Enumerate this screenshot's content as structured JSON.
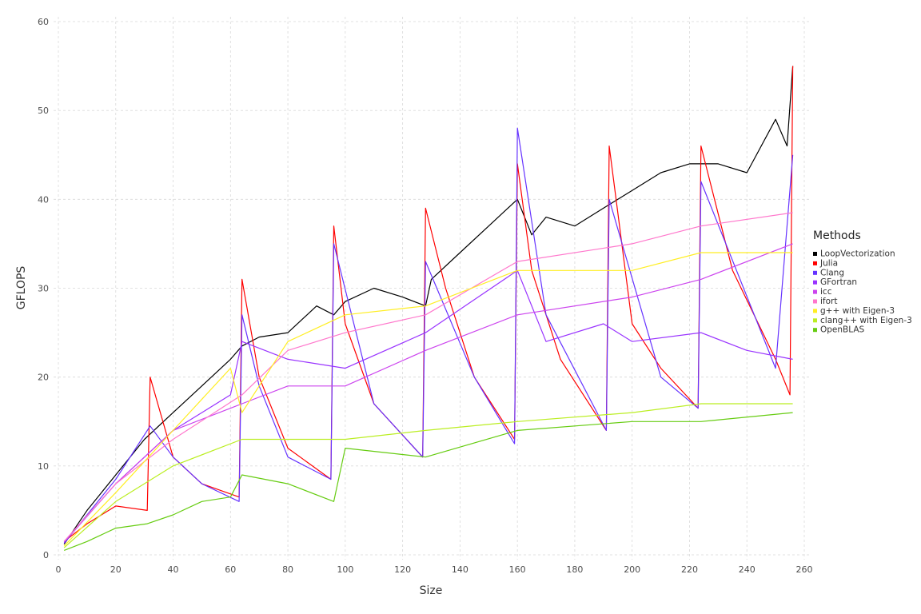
{
  "chart_data": {
    "type": "line",
    "xlabel": "Size",
    "ylabel": "GFLOPS",
    "xlim": [
      0,
      260
    ],
    "ylim": [
      0,
      60
    ],
    "x_ticks": [
      0,
      20,
      40,
      60,
      80,
      100,
      120,
      140,
      160,
      180,
      200,
      220,
      240,
      260
    ],
    "y_ticks": [
      0,
      10,
      20,
      30,
      40,
      50,
      60
    ],
    "grid": true,
    "legend": {
      "title": "Methods",
      "position": "right"
    },
    "series": [
      {
        "name": "LoopVectorization",
        "color": "#000000",
        "x": [
          2,
          10,
          20,
          30,
          40,
          50,
          60,
          64,
          70,
          80,
          90,
          96,
          100,
          110,
          120,
          128,
          130,
          140,
          150,
          160,
          165,
          170,
          180,
          190,
          200,
          210,
          220,
          230,
          240,
          250,
          254,
          256
        ],
        "y": [
          1.2,
          5.0,
          9.0,
          13.0,
          16.0,
          19.0,
          22.0,
          23.5,
          24.5,
          25.0,
          28.0,
          27.0,
          28.5,
          30.0,
          29.0,
          28.0,
          31.0,
          34.0,
          37.0,
          40.0,
          36.0,
          38.0,
          37.0,
          39.0,
          41.0,
          43.0,
          44.0,
          44.0,
          43.0,
          49.0,
          46.0,
          55.0
        ]
      },
      {
        "name": "Julia",
        "color": "#ff0000",
        "x": [
          2,
          10,
          20,
          31,
          32,
          40,
          50,
          63,
          64,
          70,
          80,
          95,
          96,
          100,
          110,
          127,
          128,
          135,
          145,
          159,
          160,
          165,
          175,
          191,
          192,
          200,
          210,
          223,
          224,
          235,
          250,
          255,
          256
        ],
        "y": [
          1.5,
          3.5,
          5.5,
          5.0,
          20.0,
          11.0,
          8.0,
          6.5,
          31.0,
          20.0,
          12.0,
          8.5,
          37.0,
          26.0,
          17.0,
          11.0,
          39.0,
          30.0,
          20.0,
          13.0,
          44.0,
          32.0,
          22.0,
          14.0,
          46.0,
          26.0,
          21.0,
          16.5,
          46.0,
          32.0,
          22.0,
          18.0,
          55.0
        ]
      },
      {
        "name": "Clang",
        "color": "#6633ff",
        "x": [
          2,
          10,
          20,
          31,
          32,
          40,
          50,
          63,
          64,
          70,
          80,
          95,
          96,
          110,
          127,
          128,
          145,
          159,
          160,
          170,
          191,
          192,
          210,
          223,
          224,
          250,
          256
        ],
        "y": [
          1.3,
          4.5,
          8.5,
          14.0,
          14.5,
          11.0,
          8.0,
          6.0,
          27.0,
          19.0,
          11.0,
          8.5,
          35.0,
          17.0,
          11.0,
          33.0,
          20.0,
          12.5,
          48.0,
          27.0,
          14.0,
          40.0,
          20.0,
          16.5,
          42.0,
          21.0,
          45.0
        ]
      },
      {
        "name": "GFortran",
        "color": "#9933ff",
        "x": [
          2,
          20,
          40,
          60,
          64,
          80,
          100,
          128,
          160,
          170,
          190,
          200,
          224,
          240,
          256
        ],
        "y": [
          1.4,
          8.0,
          14.0,
          18.0,
          24.0,
          22.0,
          21.0,
          25.0,
          32.0,
          24.0,
          26.0,
          24.0,
          25.0,
          23.0,
          22.0
        ]
      },
      {
        "name": "icc",
        "color": "#cc44ee",
        "x": [
          2,
          20,
          40,
          64,
          80,
          100,
          128,
          160,
          200,
          224,
          256
        ],
        "y": [
          1.5,
          8.0,
          14.0,
          17.0,
          19.0,
          19.0,
          23.0,
          27.0,
          29.0,
          31.0,
          35.0
        ]
      },
      {
        "name": "ifort",
        "color": "#ff77cc",
        "x": [
          2,
          20,
          40,
          64,
          80,
          100,
          128,
          160,
          200,
          224,
          256
        ],
        "y": [
          1.5,
          8.0,
          13.0,
          18.0,
          23.0,
          25.0,
          27.0,
          33.0,
          35.0,
          37.0,
          38.5
        ]
      },
      {
        "name": "g++ with Eigen-3",
        "color": "#ffee22",
        "x": [
          2,
          20,
          40,
          60,
          64,
          80,
          100,
          128,
          160,
          200,
          224,
          256
        ],
        "y": [
          1.0,
          7.0,
          14.0,
          21.0,
          16.0,
          24.0,
          27.0,
          28.0,
          32.0,
          32.0,
          34.0,
          34.0
        ]
      },
      {
        "name": "clang++ with Eigen-3",
        "color": "#bbee22",
        "x": [
          2,
          20,
          40,
          64,
          100,
          128,
          160,
          200,
          224,
          256
        ],
        "y": [
          0.8,
          6.0,
          10.0,
          13.0,
          13.0,
          14.0,
          15.0,
          16.0,
          17.0,
          17.0
        ]
      },
      {
        "name": "OpenBLAS",
        "color": "#66cc11",
        "x": [
          2,
          10,
          20,
          31,
          40,
          50,
          60,
          64,
          80,
          96,
          100,
          128,
          160,
          200,
          224,
          256
        ],
        "y": [
          0.5,
          1.5,
          3.0,
          3.5,
          4.5,
          6.0,
          6.5,
          9.0,
          8.0,
          6.0,
          12.0,
          11.0,
          14.0,
          15.0,
          15.0,
          16.0
        ]
      }
    ]
  }
}
